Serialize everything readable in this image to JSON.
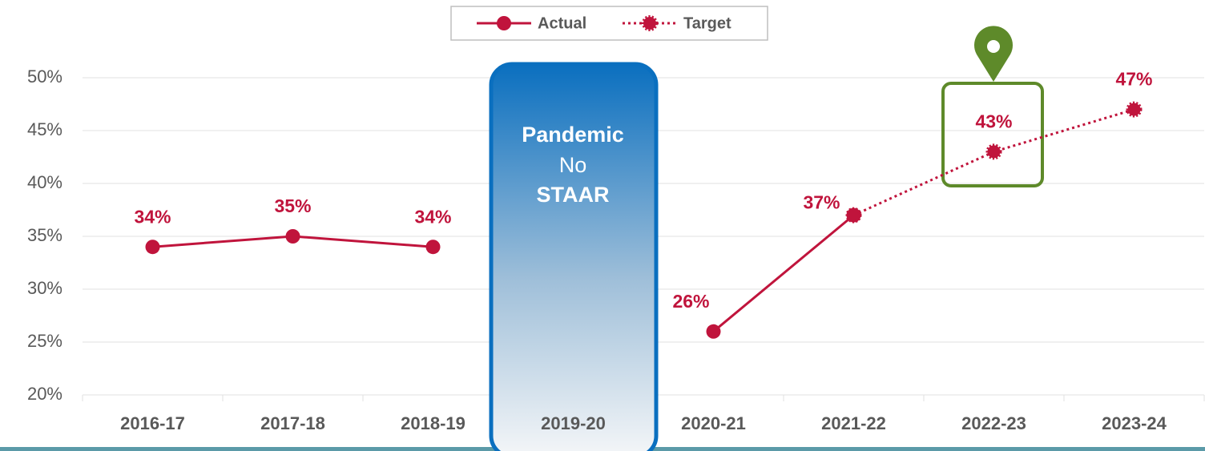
{
  "chart_data": {
    "type": "line",
    "categories": [
      "2016-17",
      "2017-18",
      "2018-19",
      "2019-20",
      "2020-21",
      "2021-22",
      "2022-23",
      "2023-24"
    ],
    "series": [
      {
        "name": "Actual",
        "color": "#c0143c",
        "style": "solid",
        "values": [
          34,
          35,
          34,
          null,
          26,
          37,
          null,
          null
        ],
        "value_labels": [
          "34%",
          "35%",
          "34%",
          null,
          "26%",
          "37%",
          null,
          null
        ]
      },
      {
        "name": "Target",
        "color": "#c0143c",
        "style": "dotted",
        "values": [
          null,
          null,
          null,
          null,
          null,
          37,
          43,
          47
        ],
        "value_labels": [
          null,
          null,
          null,
          null,
          null,
          null,
          "43%",
          "47%"
        ]
      }
    ],
    "annotations": [
      "Pandemic",
      "No",
      "STAAR"
    ],
    "ylim": [
      20,
      50
    ],
    "yticks": [
      {
        "value": 20,
        "label": "20%"
      },
      {
        "value": 25,
        "label": "25%"
      },
      {
        "value": 30,
        "label": "30%"
      },
      {
        "value": 35,
        "label": "35%"
      },
      {
        "value": 40,
        "label": "40%"
      },
      {
        "value": 45,
        "label": "45%"
      },
      {
        "value": 50,
        "label": "50%"
      }
    ],
    "grid": true,
    "legend": "top"
  }
}
